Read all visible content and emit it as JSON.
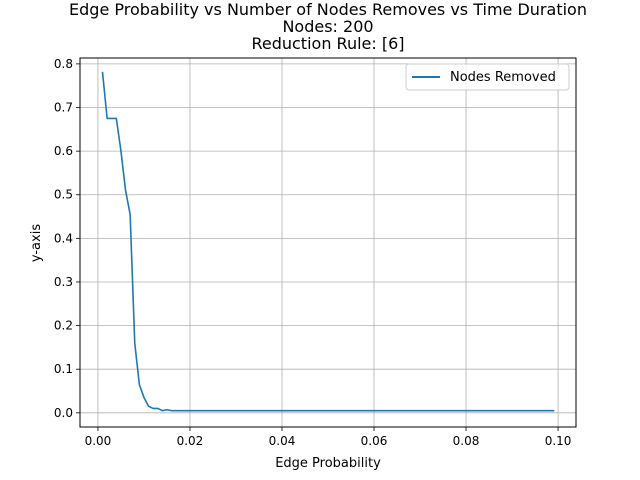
{
  "chart_data": {
    "type": "line",
    "title_lines": [
      "Edge Probability vs Number of Nodes Removes vs Time Duration",
      "Nodes: 200",
      "Reduction Rule: [6]"
    ],
    "xlabel": "Edge Probability",
    "ylabel": "y-axis",
    "xlim": [
      -0.0039,
      0.1039
    ],
    "ylim": [
      -0.0325,
      0.8135
    ],
    "x_ticks": [
      0.0,
      0.02,
      0.04,
      0.06,
      0.08,
      0.1
    ],
    "x_tick_labels": [
      "0.00",
      "0.02",
      "0.04",
      "0.06",
      "0.08",
      "0.10"
    ],
    "y_ticks": [
      0.0,
      0.1,
      0.2,
      0.3,
      0.4,
      0.5,
      0.6,
      0.7,
      0.8
    ],
    "y_tick_labels": [
      "0.0",
      "0.1",
      "0.2",
      "0.3",
      "0.4",
      "0.5",
      "0.6",
      "0.7",
      "0.8"
    ],
    "grid": true,
    "legend_position": "top-right",
    "series": [
      {
        "name": "Nodes Removed",
        "color": "#1f77b4",
        "x": [
          0.001,
          0.002,
          0.003,
          0.004,
          0.005,
          0.006,
          0.007,
          0.008,
          0.009,
          0.01,
          0.011,
          0.012,
          0.013,
          0.014,
          0.015,
          0.016,
          0.017,
          0.018,
          0.019,
          0.02,
          0.03,
          0.04,
          0.05,
          0.06,
          0.07,
          0.08,
          0.09,
          0.099
        ],
        "y": [
          0.78,
          0.675,
          0.675,
          0.675,
          0.6,
          0.51,
          0.455,
          0.16,
          0.065,
          0.035,
          0.015,
          0.01,
          0.01,
          0.005,
          0.007,
          0.005,
          0.005,
          0.005,
          0.005,
          0.005,
          0.005,
          0.005,
          0.005,
          0.005,
          0.005,
          0.005,
          0.005,
          0.005
        ]
      }
    ]
  }
}
